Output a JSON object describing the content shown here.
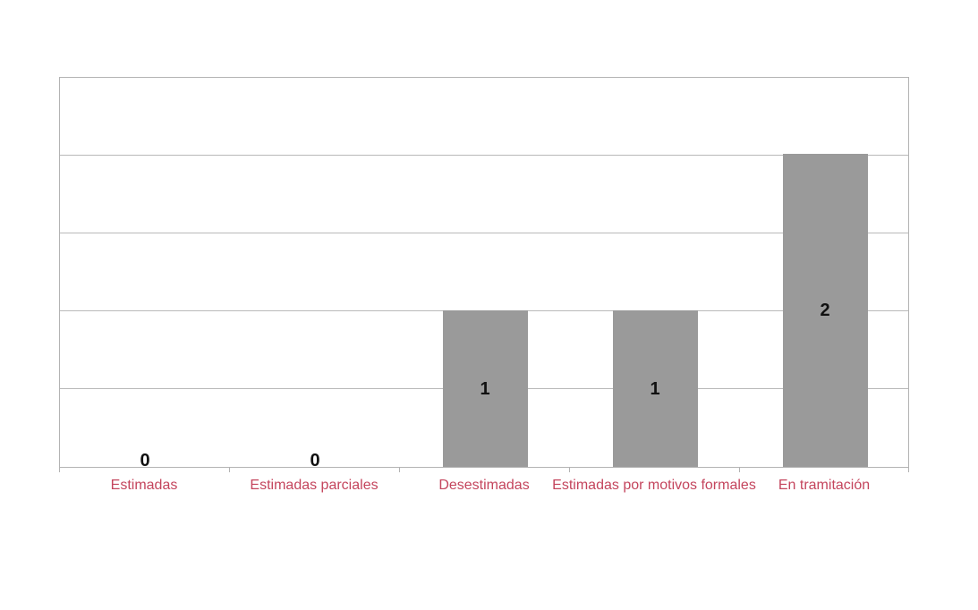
{
  "chart_data": {
    "type": "bar",
    "categories": [
      "Estimadas",
      "Estimadas parciales",
      "Desestimadas",
      "Estimadas por motivos formales",
      "En tramitación"
    ],
    "values": [
      0,
      0,
      1,
      1,
      2
    ],
    "value_labels": [
      "0",
      "0",
      "1",
      "1",
      "2"
    ],
    "title": "",
    "xlabel": "",
    "ylabel": "",
    "ylim": [
      0,
      2.5
    ],
    "grid_step": 0.5,
    "grid": "horizontal",
    "y_tick_labels_visible": false,
    "legend": "none",
    "colors": {
      "bar": "#9a9a9a",
      "grid": "#b9b9b9",
      "plot_border": "#b3b3b3",
      "tick": "#b3b3b3",
      "category_label": "#c4455d",
      "value_label": "#111111",
      "background": "#ffffff"
    }
  }
}
